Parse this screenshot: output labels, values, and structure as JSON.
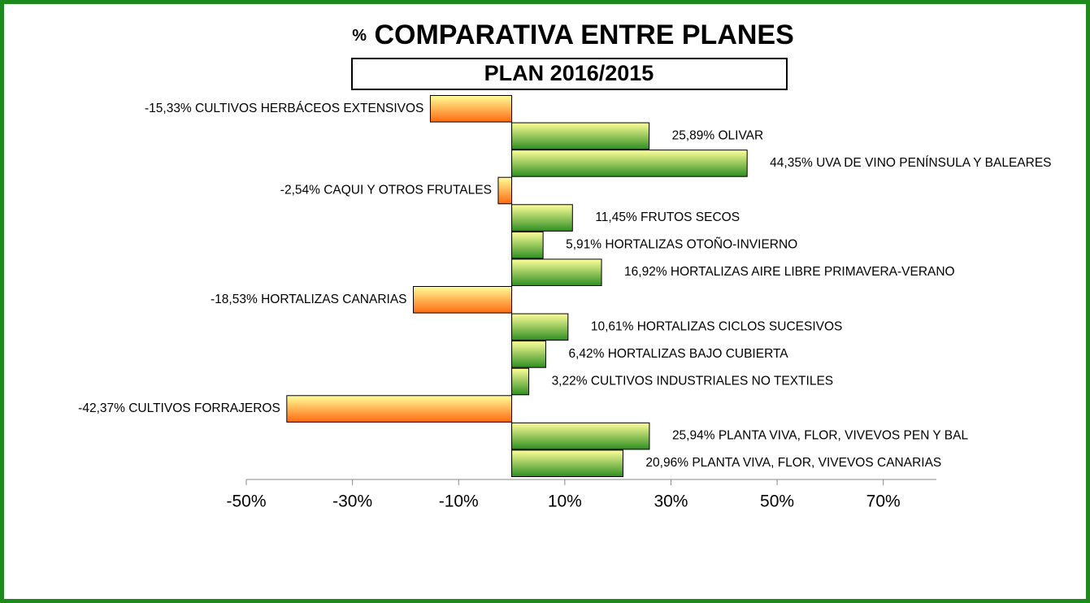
{
  "chart_data": {
    "type": "bar",
    "orientation": "horizontal",
    "title_symbol": "%",
    "title": "COMPARATIVA ENTRE PLANES",
    "subtitle": "PLAN 2016/2015",
    "categories": [
      "CULTIVOS HERBÁCEOS EXTENSIVOS",
      "OLIVAR",
      "UVA DE VINO PENÍNSULA Y BALEARES",
      "CAQUI Y OTROS FRUTALES",
      "FRUTOS SECOS",
      "HORTALIZAS OTOÑO-INVIERNO",
      "HORTALIZAS AIRE LIBRE PRIMAVERA-VERANO",
      "HORTALIZAS CANARIAS",
      "HORTALIZAS CICLOS SUCESIVOS",
      "HORTALIZAS BAJO CUBIERTA",
      "CULTIVOS INDUSTRIALES NO TEXTILES",
      "CULTIVOS FORRAJEROS",
      "PLANTA VIVA, FLOR, VIVEVOS PEN Y BAL",
      "PLANTA VIVA, FLOR, VIVEVOS CANARIAS"
    ],
    "values": [
      -15.33,
      25.89,
      44.35,
      -2.54,
      11.45,
      5.91,
      16.92,
      -18.53,
      10.61,
      6.42,
      3.22,
      -42.37,
      25.94,
      20.96
    ],
    "value_labels": [
      "-15,33%",
      "25,89%",
      "44,35%",
      "-2,54%",
      "11,45%",
      "5,91%",
      "16,92%",
      "-18,53%",
      "10,61%",
      "6,42%",
      "3,22%",
      "-42,37%",
      "25,94%",
      "20,96%"
    ],
    "positive_color": [
      "#ffff99",
      "#2f8f22"
    ],
    "negative_color": [
      "#ffff99",
      "#ff6a10"
    ],
    "xlim": [
      -50,
      80
    ],
    "xticks": [
      {
        "value": -50,
        "label": "-50%"
      },
      {
        "value": -30,
        "label": "-30%"
      },
      {
        "value": -10,
        "label": "-10%"
      },
      {
        "value": 10,
        "label": "10%"
      },
      {
        "value": 30,
        "label": "30%"
      },
      {
        "value": 50,
        "label": "50%"
      },
      {
        "value": 70,
        "label": "70%"
      }
    ]
  }
}
